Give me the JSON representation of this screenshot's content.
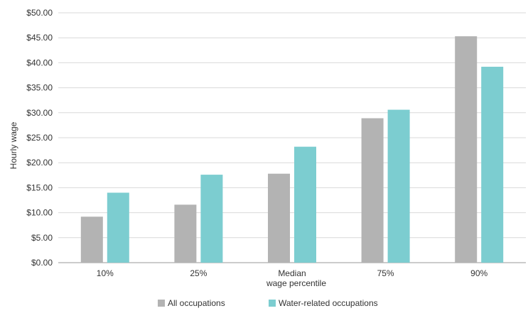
{
  "chart_data": {
    "type": "bar",
    "title": "",
    "xlabel": "wage percentile",
    "ylabel": "Hourly wage",
    "categories": [
      "10%",
      "25%",
      "Median",
      "75%",
      "90%"
    ],
    "series": [
      {
        "name": "All occupations",
        "color": "#b3b3b3",
        "values": [
          9.2,
          11.6,
          17.8,
          28.9,
          45.3
        ]
      },
      {
        "name": "Water-related occupations",
        "color": "#7ccdd0",
        "values": [
          14.0,
          17.6,
          23.2,
          30.6,
          39.2
        ]
      }
    ],
    "ylim": [
      0,
      50
    ],
    "yticks": [
      0,
      5,
      10,
      15,
      20,
      25,
      30,
      35,
      40,
      45,
      50
    ],
    "ytick_labels": [
      "$0.00",
      "$5.00",
      "$10.00",
      "$15.00",
      "$20.00",
      "$25.00",
      "$30.00",
      "$35.00",
      "$40.00",
      "$45.00",
      "$50.00"
    ],
    "grid": "horizontal",
    "legend_position": "bottom"
  }
}
